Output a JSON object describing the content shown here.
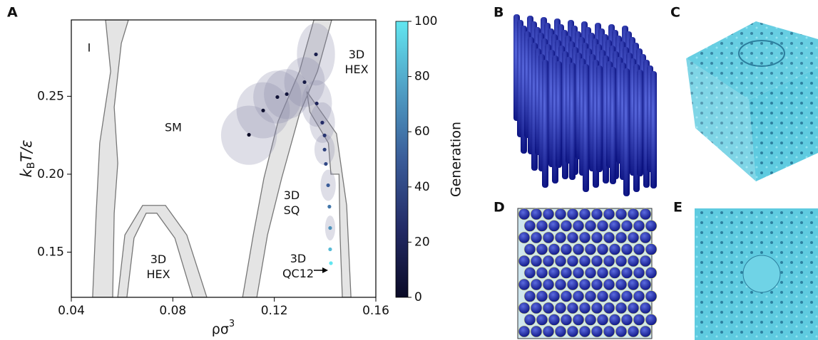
{
  "panel_labels": [
    "A",
    "B",
    "C",
    "D",
    "E"
  ],
  "chart_data": {
    "type": "scatter",
    "xlabel": [
      "ρσ",
      "3"
    ],
    "ylabel": [
      "k",
      "B",
      "T/ε"
    ],
    "xlim": [
      0.04,
      0.16
    ],
    "ylim": [
      0.121,
      0.299
    ],
    "xticks": [
      0.04,
      0.08,
      0.12,
      0.16
    ],
    "yticks": [
      0.15,
      {
        "value": 0.2,
        "label": "0.20"
      },
      0.25
    ],
    "series": [
      {
        "x": [
          0.11,
          0.1156,
          0.1212,
          0.1249,
          0.1319,
          0.1364,
          0.1367,
          0.1389,
          0.1398,
          0.1398,
          0.1403,
          0.1412,
          0.1417,
          0.142,
          0.142,
          0.1423
        ],
        "values": [
          0.2253,
          0.2409,
          0.2495,
          0.2514,
          0.2591,
          0.2769,
          0.2454,
          0.2331,
          0.2249,
          0.2158,
          0.2066,
          0.1929,
          0.1792,
          0.1655,
          0.1518,
          0.1429
        ],
        "generation": [
          0,
          3,
          6,
          9,
          12,
          15,
          20,
          25,
          30,
          35,
          40,
          50,
          60,
          70,
          85,
          100
        ]
      }
    ],
    "ellipses": [
      {
        "x": 0.11,
        "y": 0.225,
        "rx": 0.011,
        "ry": 0.019
      },
      {
        "x": 0.1156,
        "y": 0.241,
        "rx": 0.0105,
        "ry": 0.018
      },
      {
        "x": 0.1212,
        "y": 0.2495,
        "rx": 0.0095,
        "ry": 0.017
      },
      {
        "x": 0.1249,
        "y": 0.2514,
        "rx": 0.009,
        "ry": 0.016
      },
      {
        "x": 0.1319,
        "y": 0.2591,
        "rx": 0.008,
        "ry": 0.016
      },
      {
        "x": 0.1364,
        "y": 0.2769,
        "rx": 0.0075,
        "ry": 0.02
      },
      {
        "x": 0.1367,
        "y": 0.2454,
        "rx": 0.006,
        "ry": 0.015
      },
      {
        "x": 0.1389,
        "y": 0.2331,
        "rx": 0.005,
        "ry": 0.013
      },
      {
        "x": 0.1398,
        "y": 0.2158,
        "rx": 0.004,
        "ry": 0.01
      },
      {
        "x": 0.1412,
        "y": 0.1929,
        "rx": 0.003,
        "ry": 0.01
      },
      {
        "x": 0.142,
        "y": 0.1655,
        "rx": 0.002,
        "ry": 0.008
      }
    ],
    "ellipse_color": "#8a8aa8",
    "regions": [
      [
        [
          0.0535,
          0.299
        ],
        [
          0.0625,
          0.299
        ],
        [
          0.0597,
          0.284
        ],
        [
          0.0569,
          0.243
        ],
        [
          0.0583,
          0.207
        ],
        [
          0.0569,
          0.175
        ],
        [
          0.0563,
          0.121
        ],
        [
          0.0484,
          0.121
        ],
        [
          0.0498,
          0.175
        ],
        [
          0.0512,
          0.22
        ],
        [
          0.0555,
          0.266
        ]
      ],
      [
        [
          0.0583,
          0.121
        ],
        [
          0.0611,
          0.161
        ],
        [
          0.0681,
          0.18
        ],
        [
          0.0771,
          0.18
        ],
        [
          0.0855,
          0.161
        ],
        [
          0.0934,
          0.121
        ],
        [
          0.0878,
          0.121
        ],
        [
          0.0808,
          0.159
        ],
        [
          0.0737,
          0.175
        ],
        [
          0.0695,
          0.175
        ],
        [
          0.0647,
          0.159
        ],
        [
          0.0619,
          0.121
        ]
      ],
      [
        [
          0.1356,
          0.299
        ],
        [
          0.1426,
          0.299
        ],
        [
          0.137,
          0.266
        ],
        [
          0.1299,
          0.2386
        ],
        [
          0.1229,
          0.1975
        ],
        [
          0.1173,
          0.161
        ],
        [
          0.1131,
          0.121
        ],
        [
          0.1075,
          0.121
        ],
        [
          0.1117,
          0.161
        ],
        [
          0.1159,
          0.1975
        ],
        [
          0.1215,
          0.234
        ],
        [
          0.1299,
          0.266
        ]
      ],
      [
        [
          0.1328,
          0.253
        ],
        [
          0.1445,
          0.226
        ],
        [
          0.1485,
          0.18
        ],
        [
          0.1502,
          0.121
        ],
        [
          0.1468,
          0.121
        ],
        [
          0.1459,
          0.161
        ],
        [
          0.1455,
          0.2
        ],
        [
          0.1423,
          0.2
        ],
        [
          0.1413,
          0.22
        ],
        [
          0.134,
          0.24
        ]
      ]
    ],
    "region_color": "#e4e4e4",
    "phase_labels": [
      [
        "I"
      ],
      [
        "SM"
      ],
      [
        "3D",
        "HEX"
      ],
      [
        "3D",
        "SQ"
      ],
      [
        "3D",
        "HEX"
      ],
      [
        "3D",
        "QC12"
      ]
    ],
    "colorbar": {
      "label": "Generation",
      "lim": [
        0,
        100
      ],
      "ticks": [
        0,
        20,
        40,
        60,
        80,
        100
      ],
      "colormap": [
        "#0a0a26",
        "#232b66",
        "#3a5c99",
        "#4f9ec4",
        "#62e6f0"
      ]
    }
  }
}
